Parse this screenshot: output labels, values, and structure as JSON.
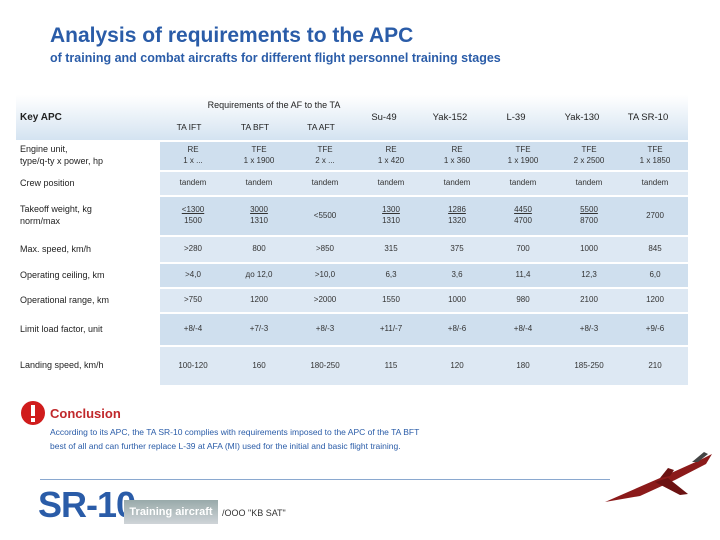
{
  "header": {
    "title": "Analysis of requirements to the APC",
    "subtitle": "of training and combat aircrafts for different flight personnel training stages"
  },
  "table": {
    "corner": "Key APC",
    "group": "Requirements of the AF to the TA",
    "columns": [
      "TA IFT",
      "TA BFT",
      "TA AFT",
      "Su-49",
      "Yak-152",
      "L-39",
      "Yak-130",
      "TA SR-10"
    ],
    "rows": [
      {
        "label": [
          "Engine unit,",
          "type/q-ty x power, hp"
        ],
        "cells": [
          [
            "RE",
            "1 x ..."
          ],
          [
            "TFE",
            "1 x 1900"
          ],
          [
            "TFE",
            "2 x ..."
          ],
          [
            "RE",
            "1 x 420"
          ],
          [
            "RE",
            "1 x 360"
          ],
          [
            "TFE",
            "1 x 1900"
          ],
          [
            "TFE",
            "2 x 2500"
          ],
          [
            "TFE",
            "1 x 1850"
          ]
        ]
      },
      {
        "label": [
          "Crew position"
        ],
        "cells": [
          "tandem",
          "tandem",
          "tandem",
          "tandem",
          "tandem",
          "tandem",
          "tandem",
          "tandem"
        ]
      },
      {
        "label": [
          "Takeoff weight, kg",
          "norm/max"
        ],
        "cells": [
          [
            "<1300",
            "1500"
          ],
          [
            "3000",
            "1310"
          ],
          "<5500",
          [
            "1300",
            "1310"
          ],
          [
            "1286",
            "1320"
          ],
          [
            "4450",
            "4700"
          ],
          [
            "5500",
            "8700"
          ],
          "2700"
        ]
      },
      {
        "label": [
          "Max. speed, km/h"
        ],
        "cells": [
          ">280",
          "800",
          ">850",
          "315",
          "375",
          "700",
          "1000",
          "845"
        ]
      },
      {
        "label": [
          "Operating ceiling, km"
        ],
        "cells": [
          ">4,0",
          "до 12,0",
          ">10,0",
          "6,3",
          "3,6",
          "11,4",
          "12,3",
          "6,0"
        ]
      },
      {
        "label": [
          "Operational range, km"
        ],
        "cells": [
          ">750",
          "1200",
          ">2000",
          "1550",
          "1000",
          "980",
          "2100",
          "1200"
        ]
      },
      {
        "label": [
          "Limit load factor, unit"
        ],
        "cells": [
          "+8/-4",
          "+7/-3",
          "+8/-3",
          "+11/-7",
          "+8/-6",
          "+8/-4",
          "+8/-3",
          "+9/-6"
        ]
      },
      {
        "label": [
          "Landing speed, km/h"
        ],
        "cells": [
          "100-120",
          "160",
          "180-250",
          "115",
          "120",
          "180",
          "185-250",
          "210"
        ]
      }
    ]
  },
  "conclusion": {
    "title": "Conclusion",
    "text": [
      "According to its APC, the TA SR-10 complies with requirements imposed to the APC of the TA BFT",
      "best of all and can further replace L-39 at AFA (MI) used for the initial and basic flight training."
    ]
  },
  "footer": {
    "logo": "SR-10",
    "tagline": "Training aircraft",
    "company": "/ООО \"KB SAT\""
  }
}
